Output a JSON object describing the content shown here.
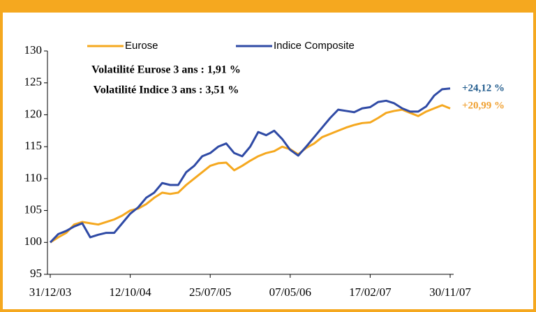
{
  "chart_data": {
    "type": "line",
    "categories": [
      "31/12/03",
      null,
      null,
      null,
      null,
      null,
      null,
      null,
      null,
      null,
      "12/10/04",
      null,
      null,
      null,
      null,
      null,
      null,
      null,
      null,
      null,
      "25/07/05",
      null,
      null,
      null,
      null,
      null,
      null,
      null,
      null,
      null,
      "07/05/06",
      null,
      null,
      null,
      null,
      null,
      null,
      null,
      null,
      null,
      "17/02/07",
      null,
      null,
      null,
      null,
      null,
      null,
      null,
      null,
      null,
      "30/11/07"
    ],
    "series": [
      {
        "name": "Eurose",
        "color": "#f5a81f",
        "values": [
          100,
          100.8,
          101.5,
          102.8,
          103.2,
          103,
          102.8,
          103.2,
          103.6,
          104.2,
          105,
          105.3,
          106,
          107,
          107.8,
          107.6,
          107.8,
          109,
          110,
          111,
          112,
          112.4,
          112.5,
          111.3,
          112,
          112.8,
          113.5,
          114,
          114.3,
          115,
          114.6,
          113.8,
          114.8,
          115.5,
          116.5,
          117,
          117.5,
          118,
          118.4,
          118.7,
          118.8,
          119.5,
          120.3,
          120.6,
          120.8,
          120.3,
          119.8,
          120.5,
          121,
          121.5,
          120.99
        ]
      },
      {
        "name": "Indice Composite",
        "color": "#2f4aa5",
        "values": [
          100,
          101.3,
          101.8,
          102.5,
          103,
          100.8,
          101.2,
          101.5,
          101.5,
          103,
          104.5,
          105.5,
          107,
          107.8,
          109.3,
          109,
          109,
          111,
          112,
          113.5,
          114,
          115,
          115.5,
          114,
          113.5,
          115,
          117.3,
          116.8,
          117.5,
          116.2,
          114.5,
          113.6,
          115,
          116.5,
          118,
          119.5,
          120.8,
          120.6,
          120.4,
          121,
          121.2,
          122,
          122.2,
          121.8,
          121,
          120.5,
          120.5,
          121.3,
          123,
          124,
          124.12
        ]
      }
    ],
    "annotations": [
      "Volatilité Eurose 3 ans : 1,91 %",
      "Volatilité Indice 3 ans : 3,51 %"
    ],
    "end_labels": [
      "+24,12 %",
      "+20,99 %"
    ],
    "ylim": [
      95,
      130
    ],
    "yticks": [
      95,
      100,
      105,
      110,
      115,
      120,
      125,
      130
    ],
    "grid": false
  }
}
